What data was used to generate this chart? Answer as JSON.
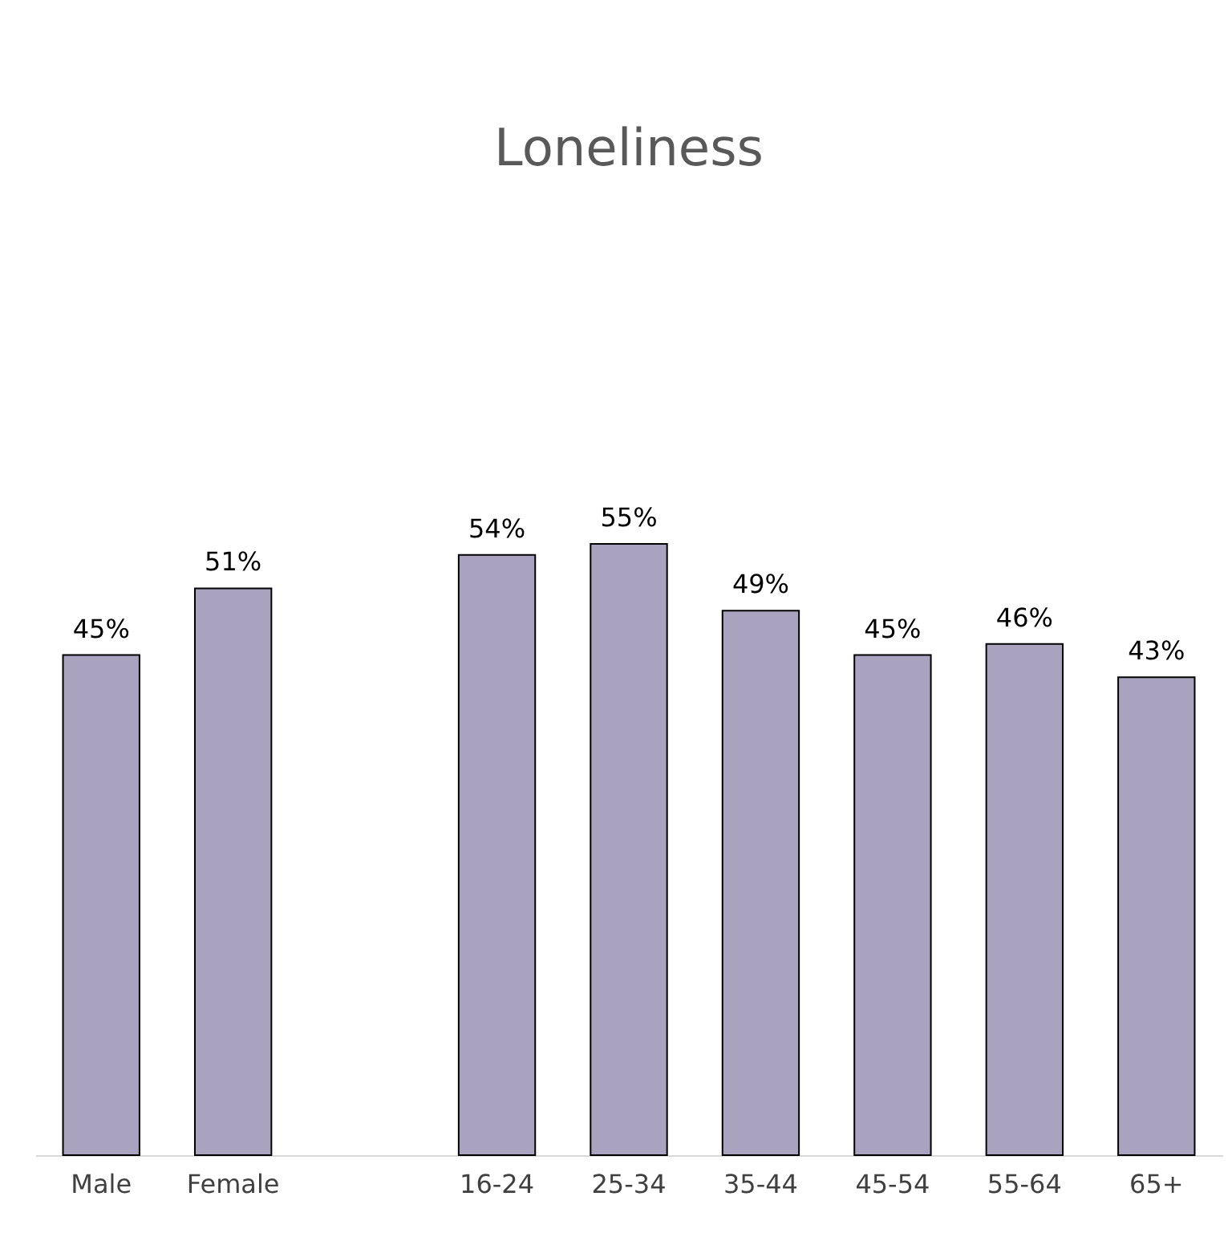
{
  "chart_data": {
    "type": "bar",
    "title": "Loneliness",
    "categories": [
      "Male",
      "Female",
      null,
      "16-24",
      "25-34",
      "35-44",
      "45-54",
      "55-64",
      "65+"
    ],
    "values": [
      45,
      51,
      null,
      54,
      55,
      49,
      45,
      46,
      43
    ],
    "value_labels": [
      "45%",
      "51%",
      null,
      "54%",
      "55%",
      "49%",
      "45%",
      "46%",
      "43%"
    ],
    "color": "#aaa3c0"
  }
}
